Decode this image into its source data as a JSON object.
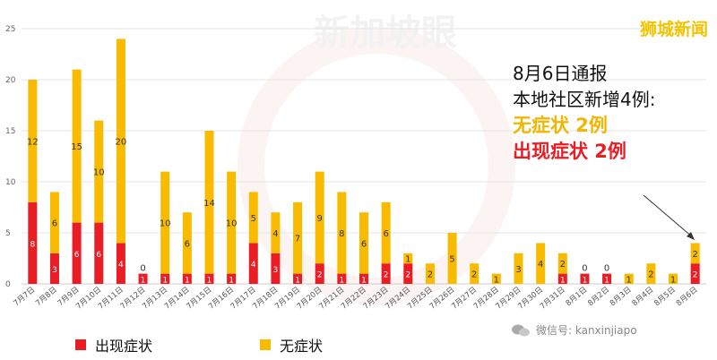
{
  "brand_label": "狮城新闻",
  "watermark_text": "新加坡眼",
  "annotation": {
    "line1": "8月6日通报",
    "line2": "本地社区新增4例:",
    "line3": "无症状 2例",
    "line4": "出现症状 2例"
  },
  "wechat": {
    "label": "微信号: kanxinjiapo"
  },
  "legend": {
    "symptomatic": "出现症状",
    "asymptomatic": "无症状"
  },
  "colors": {
    "symptomatic": "#ea1c24",
    "asymptomatic": "#f9bb00",
    "brand": "#f2c400"
  },
  "chart_data": {
    "type": "bar",
    "stacked": true,
    "ylim": [
      0,
      25
    ],
    "yticks": [
      0,
      5,
      10,
      15,
      20,
      25
    ],
    "grid": true,
    "legend_position": "bottom-left",
    "categories": [
      "7月7日",
      "7月8日",
      "7月9日",
      "7月10日",
      "7月11日",
      "7月12日",
      "7月13日",
      "7月14日",
      "7月15日",
      "7月16日",
      "7月17日",
      "7月18日",
      "7月19日",
      "7月20日",
      "7月21日",
      "7月22日",
      "7月23日",
      "7月24日",
      "7月25日",
      "7月26日",
      "7月27日",
      "7月28日",
      "7月29日",
      "7月30日",
      "7月31日",
      "8月1日",
      "8月2日",
      "8月3日",
      "8月4日",
      "8月5日",
      "8月6日"
    ],
    "series": [
      {
        "name": "出现症状",
        "values": [
          8,
          3,
          6,
          6,
          4,
          1,
          1,
          1,
          1,
          1,
          4,
          3,
          1,
          2,
          1,
          1,
          2,
          2,
          0,
          0,
          0,
          0,
          0,
          0,
          1,
          1,
          1,
          0,
          0,
          0,
          2
        ]
      },
      {
        "name": "无症状",
        "values": [
          12,
          6,
          15,
          10,
          20,
          0,
          10,
          6,
          14,
          10,
          5,
          4,
          7,
          9,
          8,
          6,
          6,
          1,
          2,
          5,
          2,
          1,
          3,
          4,
          2,
          0,
          0,
          1,
          2,
          1,
          2
        ]
      }
    ],
    "labels": [
      {
        "bottom": "8",
        "top": "12"
      },
      {
        "bottom": "3",
        "top": "6"
      },
      {
        "bottom": "6",
        "top": "15"
      },
      {
        "bottom": "6",
        "top": "10"
      },
      {
        "bottom": "4",
        "top": "20"
      },
      {
        "bottom": "1",
        "top": "0"
      },
      {
        "bottom": "1",
        "top": "10"
      },
      {
        "bottom": "1",
        "top": "6"
      },
      {
        "bottom": "1",
        "top": "14"
      },
      {
        "bottom": "1",
        "top": "10"
      },
      {
        "bottom": "4",
        "top": "5"
      },
      {
        "bottom": "3",
        "top": "4"
      },
      {
        "bottom": "1",
        "top": "7"
      },
      {
        "bottom": "2",
        "top": "9"
      },
      {
        "bottom": "1",
        "top": "8"
      },
      {
        "bottom": "1",
        "top": "6"
      },
      {
        "bottom": "2",
        "top": "6"
      },
      {
        "bottom": "2",
        "top": "1"
      },
      {
        "bottom": "",
        "top": "2"
      },
      {
        "bottom": "",
        "top": "5"
      },
      {
        "bottom": "",
        "top": "2"
      },
      {
        "bottom": "",
        "top": "1"
      },
      {
        "bottom": "",
        "top": "3"
      },
      {
        "bottom": "",
        "top": "4"
      },
      {
        "bottom": "1",
        "top": "2"
      },
      {
        "bottom": "1",
        "top": "0"
      },
      {
        "bottom": "1",
        "top": "0"
      },
      {
        "bottom": "",
        "top": "1"
      },
      {
        "bottom": "",
        "top": "2"
      },
      {
        "bottom": "",
        "top": "1"
      },
      {
        "bottom": "2",
        "top": "2"
      }
    ]
  }
}
